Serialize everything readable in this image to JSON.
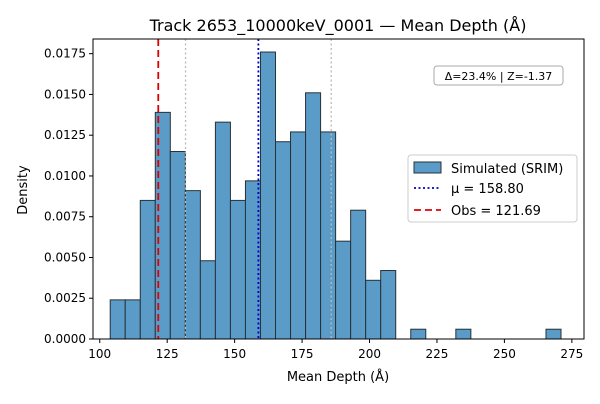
{
  "chart_data": {
    "type": "bar",
    "title": "Track 2653_10000keV_0001 — Mean Depth (Å)",
    "xlabel": "Mean Depth (Å)",
    "ylabel": "Density",
    "xlim": [
      97.5,
      279.5
    ],
    "ylim": [
      0,
      0.0184
    ],
    "x_ticks": [
      100,
      125,
      150,
      175,
      200,
      225,
      250,
      275
    ],
    "x_tick_labels": [
      "100",
      "125",
      "150",
      "175",
      "200",
      "225",
      "250",
      "275"
    ],
    "y_ticks": [
      0,
      0.0025,
      0.005,
      0.0075,
      0.01,
      0.0125,
      0.015,
      0.0175
    ],
    "y_tick_labels": [
      "0.0000",
      "0.0025",
      "0.0050",
      "0.0075",
      "0.0100",
      "0.0125",
      "0.0150",
      "0.0175"
    ],
    "bin_edges": [
      103.88,
      109.45,
      115.02,
      120.59,
      126.16,
      131.73,
      137.3,
      142.87,
      148.44,
      154.01,
      159.58,
      165.15,
      170.72,
      176.29,
      181.86,
      187.43,
      193.0,
      198.57,
      204.14,
      209.71,
      215.28,
      220.85,
      226.42,
      231.99,
      237.56,
      243.13,
      248.7,
      254.27,
      259.84,
      265.41,
      270.98
    ],
    "values": [
      0.0024,
      0.0024,
      0.0085,
      0.0139,
      0.0115,
      0.0091,
      0.0048,
      0.0133,
      0.0085,
      0.0097,
      0.0176,
      0.0121,
      0.0127,
      0.0151,
      0.0127,
      0.006,
      0.0079,
      0.0036,
      0.0042,
      0.0,
      0.0006,
      0.0,
      0.0,
      0.0006,
      0.0,
      0.0,
      0.0,
      0.0,
      0.0,
      0.0006
    ],
    "series": [
      {
        "name": "Simulated (SRIM)",
        "color": "#5b9bc8",
        "edge": "#263238"
      }
    ],
    "reference_lines": [
      {
        "name": "μ = 158.80",
        "x": 158.8,
        "color": "#0000cc",
        "style": "dotted",
        "in_legend": true
      },
      {
        "name": "Obs = 121.69",
        "x": 121.69,
        "color": "#e00000",
        "style": "dashed",
        "in_legend": true
      },
      {
        "name": "",
        "x": 131.8,
        "color": "#bbbbbb",
        "style": "dotted",
        "in_legend": false
      },
      {
        "name": "",
        "x": 185.8,
        "color": "#bbbbbb",
        "style": "dotted",
        "in_legend": false
      }
    ],
    "annotation": "Δ=23.4% | Z=-1.37",
    "legend_position": "right",
    "grid": false
  }
}
